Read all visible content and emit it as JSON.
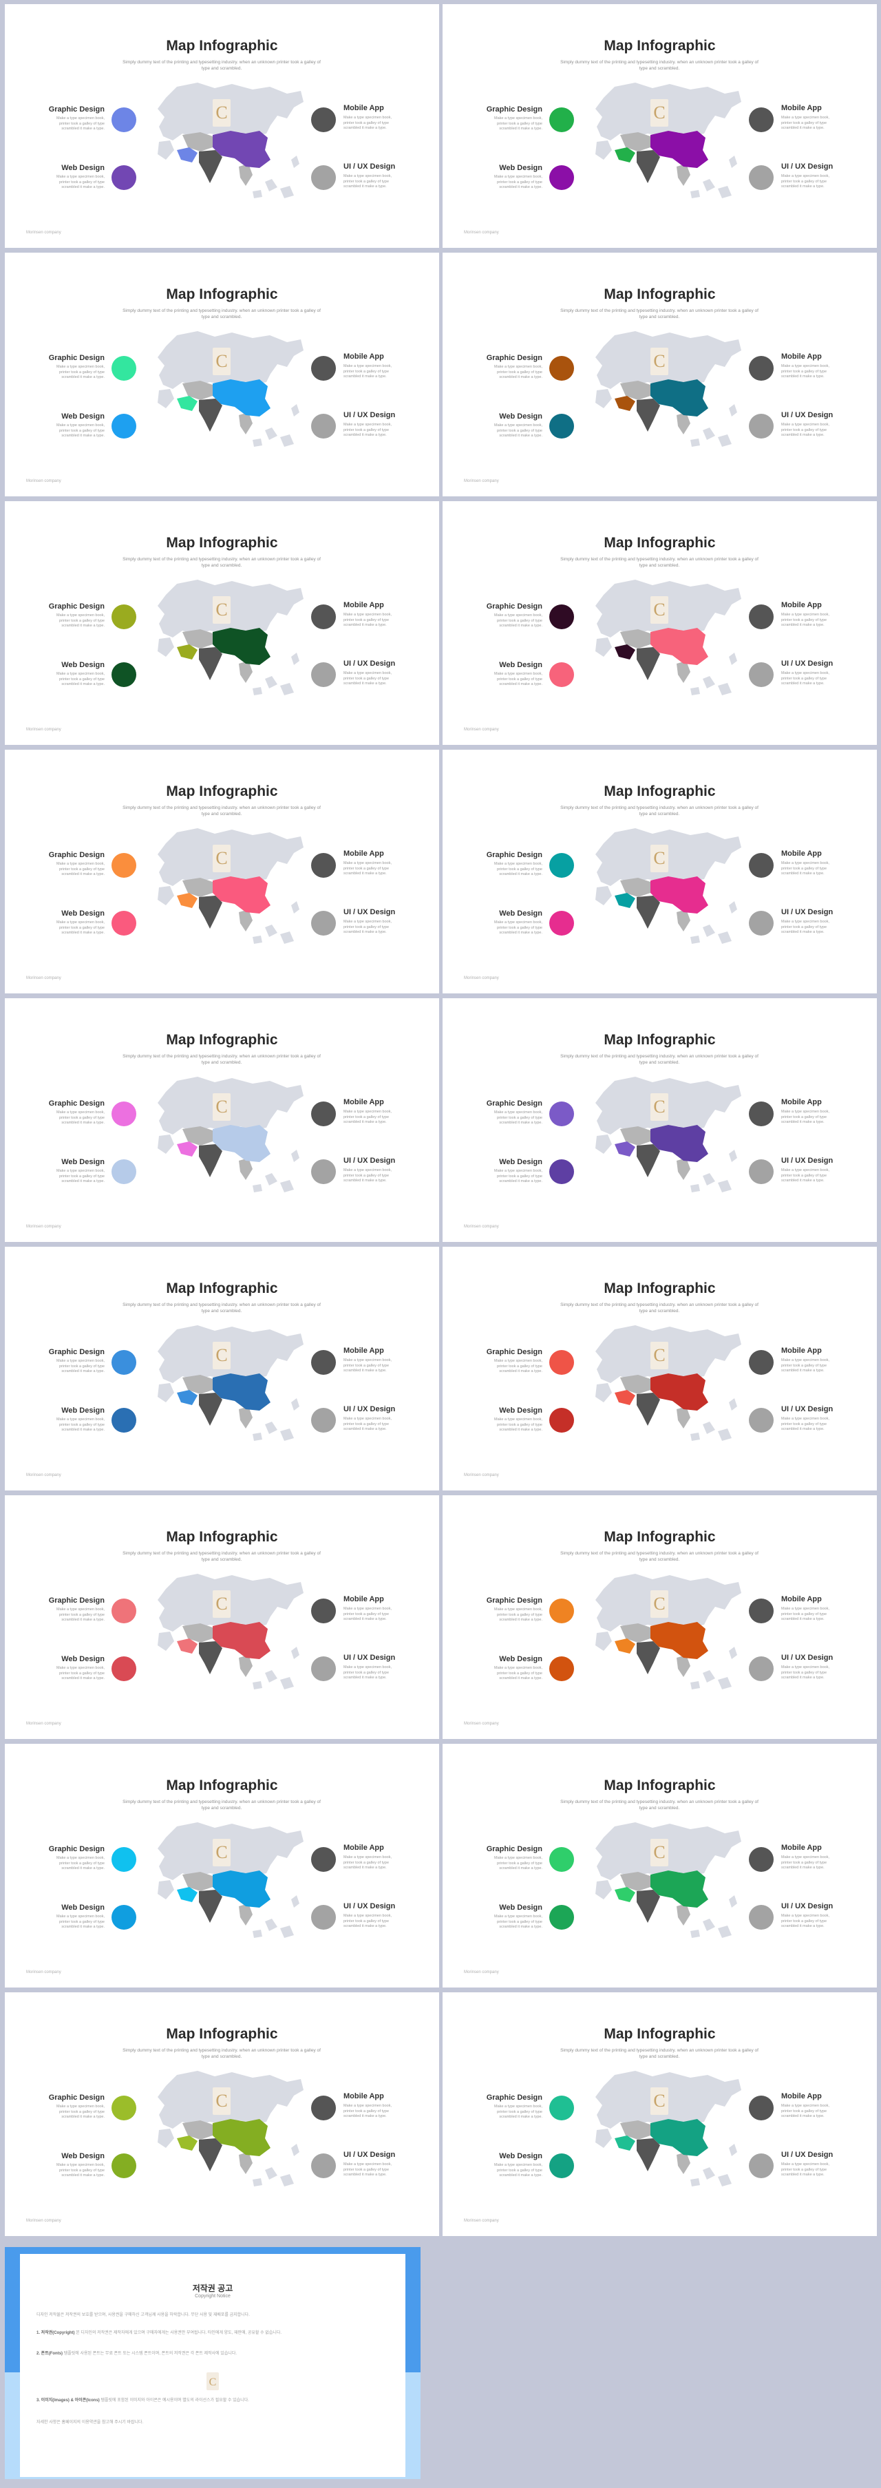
{
  "slide": {
    "title": "Map Infographic",
    "subtitle": "Simply dummy text of the printing and typesetting industry. when an unknown printer took a galley of type and scrambled.",
    "graphic_design": "Graphic Design",
    "web_design": "Web Design",
    "mobile_app": "Mobile App",
    "ui_ux": "UI / UX Design",
    "item_text": "Make a type specimen book, printer took a galley of type scrambled it make a type.",
    "footer": "Morinsen company"
  },
  "slides": [
    {
      "c1": "#6d85e6",
      "c2": "#7247b3"
    },
    {
      "c1": "#22b04a",
      "c2": "#8b0fa7"
    },
    {
      "c1": "#33e69f",
      "c2": "#1ea0f0"
    },
    {
      "c1": "#a9530d",
      "c2": "#0f6f85"
    },
    {
      "c1": "#9aab1f",
      "c2": "#0f5325"
    },
    {
      "c1": "#2f0b24",
      "c2": "#f7637b"
    },
    {
      "c1": "#fa8e3d",
      "c2": "#fa5a7e"
    },
    {
      "c1": "#07a0a2",
      "c2": "#e62d8f"
    },
    {
      "c1": "#ec70e0",
      "c2": "#b6cbe9"
    },
    {
      "c1": "#7b5ac7",
      "c2": "#5e3fa3"
    },
    {
      "c1": "#3a8fdd",
      "c2": "#2a6fb3"
    },
    {
      "c1": "#ef5447",
      "c2": "#c52f28"
    },
    {
      "c1": "#ef7379",
      "c2": "#d94a54"
    },
    {
      "c1": "#ef8322",
      "c2": "#d2530f"
    },
    {
      "c1": "#10c1ef",
      "c2": "#109ee0"
    },
    {
      "c1": "#2fce6b",
      "c2": "#1ca656"
    },
    {
      "c1": "#9bbd2a",
      "c2": "#84ae22"
    },
    {
      "c1": "#1fbf93",
      "c2": "#14a283"
    }
  ],
  "colors": {
    "map_base": "#d8dbe3",
    "dark_circle": "#555555",
    "gray_circle": "#a3a3a3",
    "india": "#555555",
    "midgray": "#b5b5b5"
  },
  "copyright": {
    "title": "저작권 공고",
    "subtitle": "Copyright Notice",
    "p1": "디자인 저작물은 저작권의 보호를 받으며, 사용권을 구매하신 고객님께 사용을 허락합니다. 무단 사용 및 재배포를 금지합니다.",
    "p2_head": "1. 저작권(Copyright)",
    "p2": "본 디자인의 저작권은 제작자에게 있으며 구매자에게는 사용권만 부여됩니다. 타인에게 양도, 재판매, 공유할 수 없습니다.",
    "p3_head": "2. 폰트(Fonts)",
    "p3": "템플릿에 사용된 폰트는 무료 폰트 또는 시스템 폰트이며, 폰트의 저작권은 각 폰트 제작사에 있습니다.",
    "p4_head": "3. 이미지(Images) & 아이콘(Icons)",
    "p4": "템플릿에 포함된 이미지와 아이콘은 예시용이며 별도의 라이선스가 필요할 수 있습니다.",
    "p5": "자세한 사항은 홈페이지의 이용약관을 참고해 주시기 바랍니다."
  }
}
